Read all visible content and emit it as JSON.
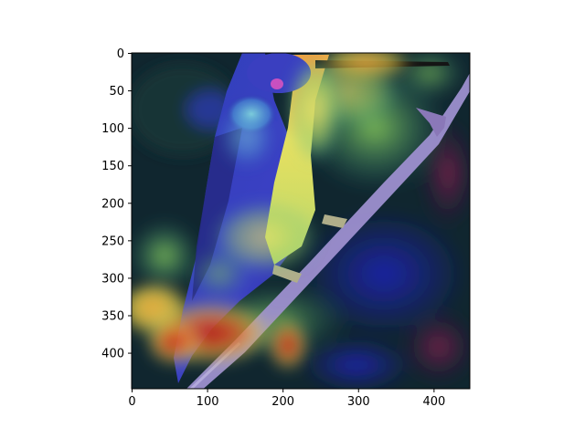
{
  "figure": {
    "x_ticks": [
      "0",
      "100",
      "200",
      "300",
      "400"
    ],
    "y_ticks": [
      "0",
      "50",
      "100",
      "150",
      "200",
      "250",
      "300",
      "350",
      "400"
    ]
  },
  "image": {
    "subject": "hummingbird perched on branch with Grad-CAM style heatmap overlay",
    "colormap": "jet"
  },
  "colors": {
    "background": "#0e1a22",
    "bird_body": "#3a3fbf",
    "throat": "#e8d77a",
    "beak": "#1a1a1a",
    "branch": "#9c8fc9",
    "heat_red": "#c81e1e",
    "heat_yellow": "#e6e04a",
    "heat_cyan": "#5fd0c8",
    "heat_blue": "#2a2fb0"
  }
}
